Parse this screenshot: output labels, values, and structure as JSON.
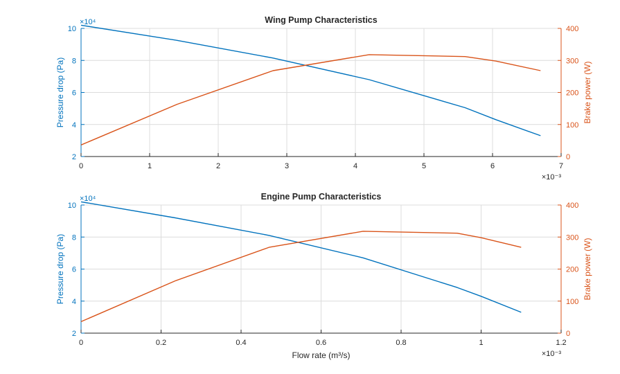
{
  "chart_data": [
    {
      "type": "line",
      "title": "Wing Pump Characteristics",
      "xlabel": "",
      "x_exponent": "×10⁻³",
      "xlim": [
        0,
        7
      ],
      "xticks": [
        "0",
        "1",
        "2",
        "3",
        "4",
        "5",
        "6",
        "7"
      ],
      "ylabel_left": "Pressure drop (Pa)",
      "ylabel_right": "Brake power (W)",
      "yleft_exponent": "×10⁴",
      "ylim_left": [
        2,
        10
      ],
      "yticks_left": [
        "2",
        "4",
        "6",
        "8",
        "10"
      ],
      "ylim_right": [
        0,
        400
      ],
      "yticks_right": [
        "0",
        "100",
        "200",
        "300",
        "400"
      ],
      "grid": true,
      "series": [
        {
          "axis": "left",
          "color": "#0072BD",
          "x": [
            0,
            1.4,
            2.8,
            4.2,
            5.6,
            6.05,
            6.7
          ],
          "y": [
            10.2,
            9.25,
            8.15,
            6.8,
            5.05,
            4.3,
            3.3
          ]
        },
        {
          "axis": "right",
          "color": "#D95319",
          "x": [
            0,
            1.4,
            2.8,
            4.2,
            5.6,
            6.05,
            6.7
          ],
          "y": [
            36,
            163,
            268,
            318,
            312,
            298,
            268
          ]
        }
      ]
    },
    {
      "type": "line",
      "title": "Engine Pump Characteristics",
      "xlabel": "Flow  rate  (m³/s)",
      "x_exponent": "×10⁻³",
      "xlim": [
        0,
        1.2
      ],
      "xticks": [
        "0",
        "0.2",
        "0.4",
        "0.6",
        "0.8",
        "1",
        "1.2"
      ],
      "ylabel_left": "Pressure drop (Pa)",
      "ylabel_right": "Brake power (W)",
      "yleft_exponent": "×10⁴",
      "ylim_left": [
        2,
        10
      ],
      "yticks_left": [
        "2",
        "4",
        "6",
        "8",
        "10"
      ],
      "ylim_right": [
        0,
        400
      ],
      "yticks_right": [
        "0",
        "100",
        "200",
        "300",
        "400"
      ],
      "grid": true,
      "series": [
        {
          "axis": "left",
          "color": "#0072BD",
          "x": [
            0,
            0.235,
            0.47,
            0.705,
            0.94,
            1.0,
            1.1
          ],
          "y": [
            10.2,
            9.2,
            8.1,
            6.7,
            4.85,
            4.3,
            3.3
          ]
        },
        {
          "axis": "right",
          "color": "#D95319",
          "x": [
            0,
            0.235,
            0.47,
            0.705,
            0.94,
            1.0,
            1.1
          ],
          "y": [
            36,
            163,
            268,
            318,
            312,
            298,
            268
          ]
        }
      ]
    }
  ]
}
